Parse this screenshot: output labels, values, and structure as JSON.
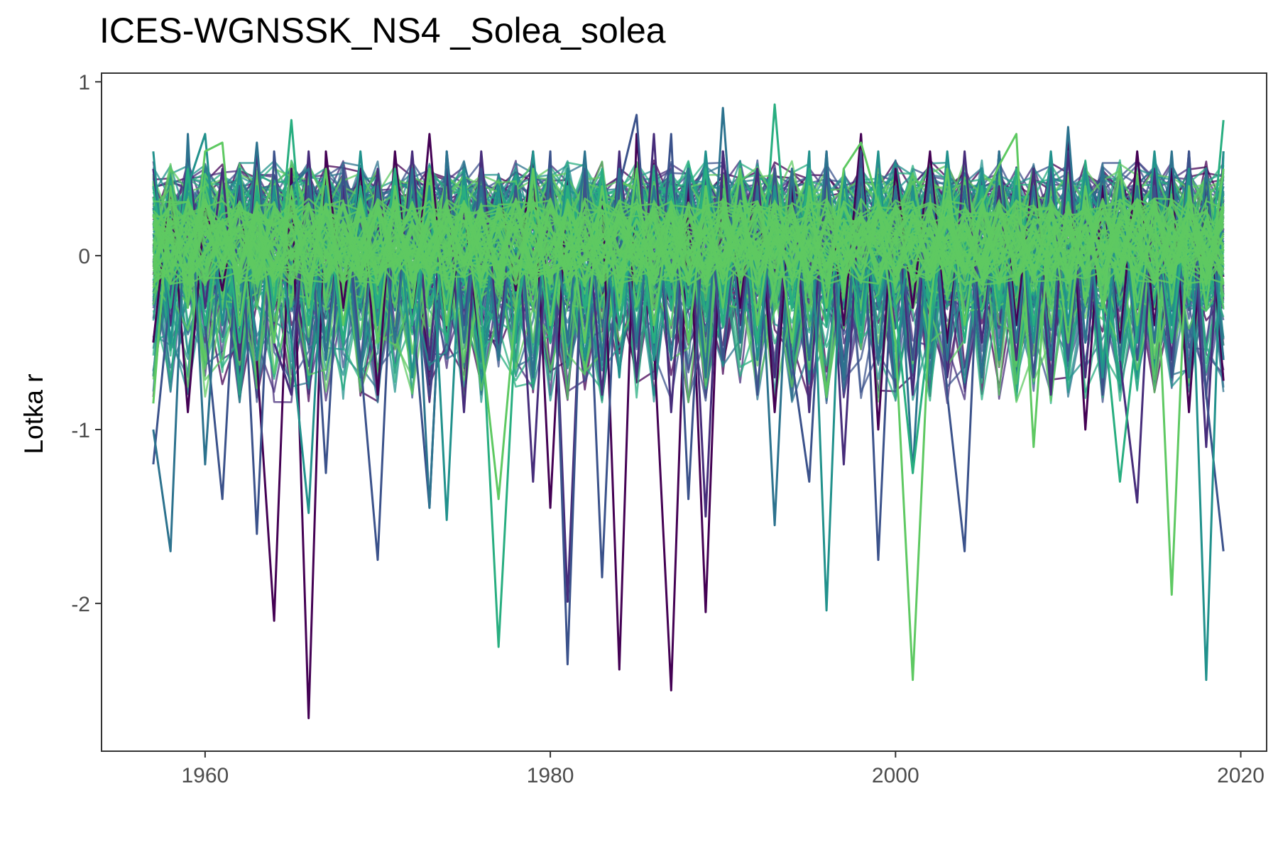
{
  "chart_data": {
    "type": "line",
    "title": "ICES-WGNSSK_NS4 _Solea_solea",
    "xlabel": "",
    "ylabel": "Lotka r",
    "xlim": [
      1954,
      2021.5
    ],
    "ylim": [
      -2.85,
      1.05
    ],
    "x_ticks": [
      1960,
      1980,
      2000,
      2020
    ],
    "y_ticks": [
      1,
      0,
      -1,
      -2
    ],
    "x_tick_labels": [
      "1960",
      "1980",
      "2000",
      "2020"
    ],
    "y_tick_labels": [
      "1",
      "0",
      "-1",
      "-2"
    ],
    "grid": false,
    "legend": "none",
    "colormap": "viridis",
    "series_colors": [
      "#440154",
      "#472d7b",
      "#3b528b",
      "#2c728e",
      "#21918c",
      "#28ae80",
      "#5ec962"
    ],
    "x": [
      1957,
      1958,
      1959,
      1960,
      1961,
      1962,
      1963,
      1964,
      1965,
      1966,
      1967,
      1968,
      1969,
      1970,
      1971,
      1972,
      1973,
      1974,
      1975,
      1976,
      1977,
      1978,
      1979,
      1980,
      1981,
      1982,
      1983,
      1984,
      1985,
      1986,
      1987,
      1988,
      1989,
      1990,
      1991,
      1992,
      1993,
      1994,
      1995,
      1996,
      1997,
      1998,
      1999,
      2000,
      2001,
      2002,
      2003,
      2004,
      2005,
      2006,
      2007,
      2008,
      2009,
      2010,
      2011,
      2012,
      2013,
      2014,
      2015,
      2016,
      2017,
      2018,
      2019
    ],
    "series": [
      {
        "values": [
          -0.5,
          0.4,
          -0.9,
          0.3,
          -0.2,
          0.4,
          -0.6,
          -2.1,
          0.5,
          -2.66,
          0.6,
          -0.3,
          0.5,
          -0.8,
          0.6,
          -0.4,
          0.7,
          -0.5,
          0.3,
          -0.6,
          0.4,
          -0.2,
          0.6,
          -1.45,
          0.5,
          -0.6,
          0.4,
          -2.38,
          0.7,
          -0.5,
          -2.5,
          0.4,
          -2.05,
          0.6,
          -0.3,
          0.5,
          -0.9,
          0.4,
          -0.6,
          0.5,
          -0.4,
          0.7,
          -1.0,
          0.5,
          -0.3,
          0.6,
          -0.5,
          0.4,
          -0.7,
          0.6,
          -0.4,
          0.5,
          -0.6,
          0.7,
          -1.0,
          0.4,
          -0.5,
          0.6,
          -0.4,
          0.5,
          -0.9,
          0.5,
          -0.72
        ]
      },
      {
        "values": [
          0.5,
          -0.4,
          0.6,
          -0.3,
          0.5,
          -0.6,
          0.6,
          -0.5,
          -0.8,
          0.6,
          -0.6,
          0.4,
          -0.7,
          0.5,
          -0.5,
          0.6,
          -0.6,
          0.5,
          -0.9,
          0.6,
          -0.5,
          0.4,
          -1.3,
          0.5,
          -1.99,
          0.4,
          -0.8,
          0.6,
          -0.7,
          0.7,
          -0.9,
          0.5,
          -1.5,
          0.6,
          -0.4,
          0.5,
          -0.7,
          0.5,
          -0.9,
          0.6,
          -1.2,
          0.5,
          -0.6,
          0.4,
          -0.8,
          0.5,
          -0.7,
          0.6,
          -0.5,
          0.4,
          -0.6,
          0.5,
          -0.8,
          0.6,
          -0.7,
          0.5,
          -0.6,
          -1.42,
          0.5,
          -0.6,
          0.6,
          -1.1,
          0.6
        ]
      },
      {
        "values": [
          -1.2,
          -0.2,
          0.5,
          -0.4,
          -1.4,
          0.4,
          -1.6,
          0.6,
          -0.5,
          0.4,
          -1.25,
          0.5,
          -0.6,
          -1.75,
          0.4,
          -0.3,
          -1.45,
          0.6,
          -0.4,
          0.5,
          -0.6,
          0.4,
          -0.7,
          0.6,
          -2.35,
          0.5,
          -1.85,
          0.4,
          0.81,
          -0.6,
          0.7,
          -1.4,
          0.5,
          -0.6,
          0.4,
          -0.8,
          0.5,
          -0.6,
          -1.3,
          0.5,
          -0.7,
          0.6,
          -1.75,
          0.4,
          -0.6,
          0.5,
          -0.8,
          -1.7,
          0.5,
          -0.6,
          0.4,
          -0.7,
          0.5,
          -0.6,
          0.4,
          -0.8,
          0.5,
          -0.6,
          0.4,
          -0.7,
          0.6,
          -0.8,
          -1.7
        ]
      },
      {
        "values": [
          -1.0,
          -1.7,
          0.7,
          -1.2,
          0.3,
          -0.4,
          0.65,
          -0.5,
          0.4,
          0.5,
          -0.6,
          0.3,
          -0.7,
          0.4,
          -0.5,
          0.5,
          -1.45,
          0.6,
          -0.5,
          0.4,
          -0.6,
          0.3,
          -0.7,
          0.5,
          -0.5,
          0.6,
          -0.6,
          0.5,
          -0.5,
          0.4,
          -0.6,
          0.5,
          -0.7,
          0.85,
          -0.5,
          0.4,
          -1.55,
          0.5,
          -0.6,
          0.6,
          -0.7,
          0.5,
          -0.6,
          0.4,
          -1.25,
          0.5,
          -0.6,
          0.4,
          -0.7,
          0.6,
          -0.5,
          0.4,
          -0.6,
          0.74,
          -0.5,
          0.5,
          -0.6,
          0.4,
          -0.5,
          0.6,
          -0.7,
          0.5,
          -0.6
        ]
      },
      {
        "values": [
          0.6,
          -0.5,
          0.4,
          0.7,
          -0.4,
          0.5,
          -0.6,
          0.4,
          -0.5,
          -1.48,
          0.4,
          -0.5,
          0.6,
          -0.4,
          0.5,
          -0.7,
          0.4,
          -1.52,
          0.5,
          -0.6,
          0.4,
          -0.5,
          0.6,
          -0.4,
          0.5,
          -0.6,
          0.4,
          -0.7,
          0.5,
          -0.6,
          0.4,
          -0.5,
          0.6,
          -0.4,
          0.5,
          -0.6,
          0.4,
          -0.5,
          0.6,
          -2.04,
          0.5,
          -0.4,
          0.6,
          -0.7,
          0.4,
          -0.5,
          0.6,
          -0.4,
          0.5,
          -0.6,
          0.4,
          -0.5,
          0.6,
          -0.4,
          0.5,
          -0.7,
          0.4,
          -0.5,
          0.6,
          -0.4,
          0.5,
          -2.44,
          0.6
        ]
      },
      {
        "values": [
          0.4,
          -0.3,
          0.5,
          -0.4,
          0.3,
          -0.5,
          0.4,
          -0.3,
          0.78,
          -0.4,
          0.3,
          -0.5,
          0.4,
          -0.3,
          0.5,
          -0.4,
          0.3,
          -0.5,
          0.4,
          -0.3,
          -2.25,
          -0.4,
          0.3,
          -0.5,
          0.4,
          -0.3,
          0.5,
          -0.4,
          0.3,
          -0.5,
          0.4,
          -0.3,
          0.5,
          -0.4,
          0.3,
          -0.5,
          0.87,
          -0.3,
          0.5,
          -0.4,
          0.3,
          -0.5,
          0.4,
          -0.3,
          -1.25,
          -0.4,
          0.3,
          -0.5,
          0.4,
          -0.3,
          0.5,
          -0.4,
          0.3,
          -0.5,
          0.4,
          -0.3,
          -1.3,
          -0.4,
          0.3,
          -0.5,
          0.4,
          -0.3,
          0.78
        ]
      },
      {
        "values": [
          -0.85,
          0.4,
          -0.3,
          0.6,
          0.65,
          -0.4,
          0.3,
          -0.5,
          0.4,
          -0.3,
          0.5,
          -0.4,
          0.3,
          -0.5,
          0.4,
          -0.3,
          0.5,
          -0.4,
          0.3,
          -0.5,
          -1.4,
          -0.3,
          0.5,
          -0.4,
          0.3,
          -0.5,
          0.4,
          -0.3,
          0.5,
          -0.4,
          0.3,
          -0.5,
          0.4,
          -0.3,
          0.5,
          -0.4,
          0.3,
          -0.5,
          0.4,
          -0.3,
          0.5,
          0.65,
          0.3,
          -0.5,
          -2.44,
          -0.3,
          0.5,
          -0.4,
          0.3,
          0.52,
          0.7,
          -1.1,
          0.3,
          -0.5,
          0.4,
          -0.3,
          0.5,
          -0.4,
          0.3,
          -1.95,
          0.4,
          -0.3,
          0.5
        ]
      }
    ]
  }
}
